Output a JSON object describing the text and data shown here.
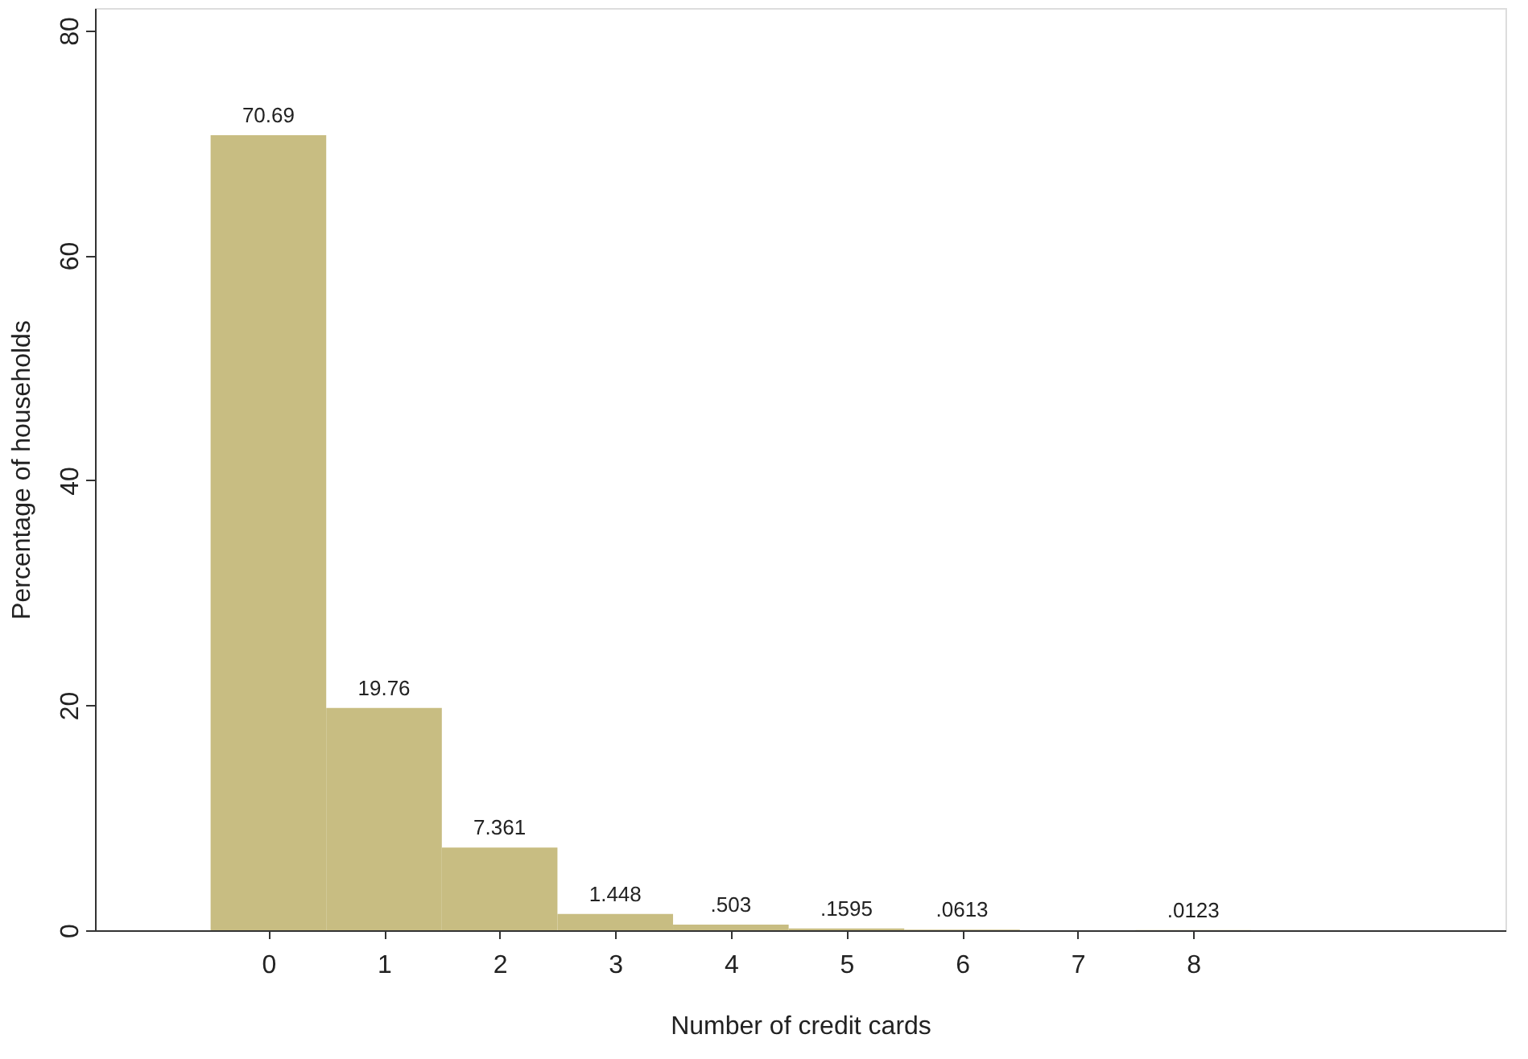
{
  "chart_data": {
    "type": "histogram",
    "xlabel": "Number of credit cards",
    "ylabel": "Percentage of households",
    "bins": [
      -0.5,
      0.5,
      1.5,
      2.5,
      3.5,
      4.5,
      5.5,
      6.5,
      7.5,
      8.5
    ],
    "values": [
      70.69,
      19.76,
      7.361,
      1.448,
      0.503,
      0.1595,
      0.0613,
      0,
      0.0123
    ],
    "value_labels": [
      "70.69",
      "19.76",
      "7.361",
      "1.448",
      ".503",
      ".1595",
      ".0613",
      null,
      ".0123"
    ],
    "color": "#c8bd82",
    "xlim": [
      -1.5,
      10.7
    ],
    "xticks": [
      0,
      1,
      2,
      3,
      4,
      5,
      6,
      7,
      8
    ],
    "ylim": [
      0,
      82
    ],
    "yticks": [
      0,
      20,
      40,
      60,
      80
    ],
    "grid": false
  }
}
